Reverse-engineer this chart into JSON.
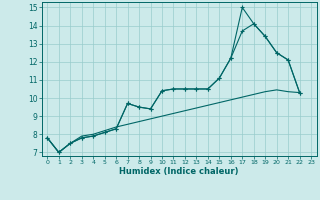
{
  "xlabel": "Humidex (Indice chaleur)",
  "xlim": [
    -0.5,
    23.5
  ],
  "ylim": [
    6.8,
    15.3
  ],
  "xticks": [
    0,
    1,
    2,
    3,
    4,
    5,
    6,
    7,
    8,
    9,
    10,
    11,
    12,
    13,
    14,
    15,
    16,
    17,
    18,
    19,
    20,
    21,
    22,
    23
  ],
  "yticks": [
    7,
    8,
    9,
    10,
    11,
    12,
    13,
    14,
    15
  ],
  "bg_color": "#cceaea",
  "grid_color": "#99cccc",
  "line_color": "#006666",
  "line1_x": [
    0,
    1,
    2,
    3,
    4,
    5,
    6,
    7,
    8,
    9,
    10,
    11,
    12,
    13,
    14,
    15,
    16,
    17,
    18,
    19,
    20,
    21,
    22
  ],
  "line1_y": [
    7.8,
    7.0,
    7.5,
    7.8,
    7.9,
    8.1,
    8.3,
    9.7,
    9.5,
    9.4,
    10.4,
    10.5,
    10.5,
    10.5,
    10.5,
    11.1,
    12.2,
    15.0,
    14.1,
    13.4,
    12.5,
    12.1,
    10.3
  ],
  "line2_x": [
    0,
    1,
    2,
    3,
    4,
    5,
    6,
    7,
    8,
    9,
    10,
    11,
    12,
    13,
    14,
    15,
    16,
    17,
    18,
    19,
    20,
    21,
    22
  ],
  "line2_y": [
    7.8,
    7.0,
    7.5,
    7.8,
    7.9,
    8.1,
    8.3,
    9.7,
    9.5,
    9.4,
    10.4,
    10.5,
    10.5,
    10.5,
    10.5,
    11.1,
    12.2,
    13.7,
    14.1,
    13.4,
    12.5,
    12.1,
    10.3
  ],
  "line3_x": [
    0,
    1,
    2,
    3,
    4,
    5,
    6,
    7,
    8,
    9,
    10,
    11,
    12,
    13,
    14,
    15,
    16,
    17,
    18,
    19,
    20,
    21,
    22
  ],
  "line3_y": [
    7.8,
    7.0,
    7.5,
    7.9,
    8.0,
    8.2,
    8.4,
    8.55,
    8.7,
    8.85,
    9.0,
    9.15,
    9.3,
    9.45,
    9.6,
    9.75,
    9.9,
    10.05,
    10.2,
    10.35,
    10.45,
    10.35,
    10.3
  ]
}
